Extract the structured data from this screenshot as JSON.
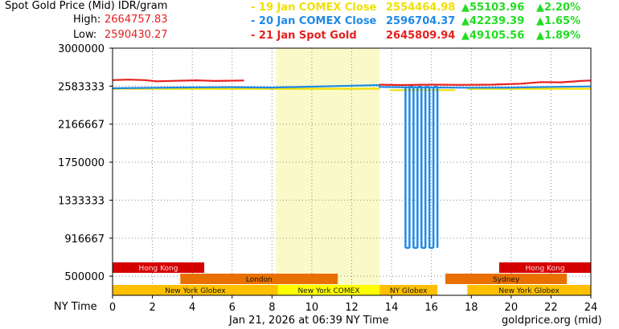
{
  "header": {
    "title": "Spot Gold Price (Mid) IDR/gram",
    "high_label": "High:",
    "high_value": "2664757.83",
    "low_label": "Low:",
    "low_value": "2590430.27"
  },
  "legend": [
    {
      "label": "- 19 Jan COMEX Close",
      "value": "2554464.98",
      "change": "▲55103.96",
      "pct": "▲2.20%",
      "color": "#f0e000"
    },
    {
      "label": "- 20 Jan COMEX Close",
      "value": "2596704.37",
      "change": "▲42239.39",
      "pct": "▲1.65%",
      "color": "#1e8ae6"
    },
    {
      "label": "- 21 Jan Spot Gold",
      "value": "2645809.94",
      "change": "▲49105.56",
      "pct": "▲1.89%",
      "color": "#e62020"
    }
  ],
  "footer": {
    "axis_title": "NY Time",
    "timestamp": "Jan 21, 2026 at 06:39 NY Time",
    "source": "goldprice.org (mid)"
  },
  "colors": {
    "up": "#22dd22",
    "highlight": "#fafac8",
    "grid": "#888888"
  },
  "chart_data": {
    "type": "line",
    "xlim": [
      0,
      24
    ],
    "ylim": [
      290000,
      3000000
    ],
    "x_ticks": [
      0,
      2,
      4,
      6,
      8,
      10,
      12,
      14,
      16,
      18,
      20,
      22,
      24
    ],
    "y_ticks": [
      500000,
      916667,
      1333333,
      1750000,
      2166667,
      2583333,
      3000000
    ],
    "y_tick_labels": [
      "500000",
      "916667",
      "1333333",
      "1750000",
      "2166667",
      "2583333",
      "3000000"
    ],
    "highlight_range": [
      8.2,
      13.4
    ],
    "series": [
      {
        "name": "19 Jan COMEX Close",
        "color": "#f0e000",
        "points": [
          [
            0,
            2554465
          ],
          [
            13.4,
            2554465
          ],
          [
            null,
            null
          ],
          [
            13.9,
            2540000
          ],
          [
            17.2,
            2540000
          ],
          [
            null,
            null
          ],
          [
            17.8,
            2554465
          ],
          [
            24,
            2554465
          ]
        ]
      },
      {
        "name": "20 Jan COMEX Close",
        "color": "#1e8ae6",
        "points": [
          [
            0,
            2560000
          ],
          [
            2,
            2565000
          ],
          [
            4,
            2570000
          ],
          [
            6,
            2572000
          ],
          [
            8,
            2568000
          ],
          [
            10,
            2578000
          ],
          [
            12,
            2588000
          ],
          [
            13.4,
            2595000
          ],
          [
            13.4,
            2575000
          ],
          [
            14.8,
            2570000
          ],
          [
            18,
            2566000
          ],
          [
            20,
            2568000
          ],
          [
            22,
            2575000
          ],
          [
            24,
            2580000
          ]
        ],
        "spikes": {
          "low": 810000,
          "x": [
            14.7,
            14.9,
            15.1,
            15.3,
            15.5,
            15.7,
            15.9,
            16.1,
            16.3
          ]
        }
      },
      {
        "name": "21 Jan Spot Gold",
        "color": "#e62020",
        "points": [
          [
            0,
            2650000
          ],
          [
            0.8,
            2655000
          ],
          [
            1.6,
            2650000
          ],
          [
            2.2,
            2637000
          ],
          [
            3.2,
            2642000
          ],
          [
            4.2,
            2647000
          ],
          [
            5.2,
            2640000
          ],
          [
            6.6,
            2645000
          ],
          [
            null,
            null
          ],
          [
            13.4,
            2600000
          ],
          [
            14.5,
            2595000
          ],
          [
            16,
            2600000
          ],
          [
            17.5,
            2597000
          ],
          [
            19,
            2600000
          ],
          [
            20.5,
            2610000
          ],
          [
            21.5,
            2628000
          ],
          [
            22.5,
            2625000
          ],
          [
            23.5,
            2640000
          ],
          [
            24,
            2645000
          ]
        ]
      }
    ],
    "sessions": [
      {
        "label": "Hong Kong",
        "start": 0,
        "end": 4.6,
        "row": 0,
        "color": "#d40000"
      },
      {
        "label": "Hong Kong",
        "start": 19.4,
        "end": 24,
        "row": 0,
        "color": "#d40000"
      },
      {
        "label": "London",
        "start": 3.4,
        "end": 11.3,
        "row": 1,
        "color": "#e87000"
      },
      {
        "label": "Sydney",
        "start": 16.7,
        "end": 22.8,
        "row": 1,
        "color": "#e87000"
      },
      {
        "label": "New York Globex",
        "start": 0,
        "end": 8.3,
        "row": 2,
        "color": "#ffc000"
      },
      {
        "label": "New York COMEX",
        "start": 8.3,
        "end": 13.4,
        "row": 2,
        "color": "#ffff00"
      },
      {
        "label": "NY Globex",
        "start": 13.4,
        "end": 16.3,
        "row": 2,
        "color": "#ffc000"
      },
      {
        "label": "New York Globex",
        "start": 17.8,
        "end": 24,
        "row": 2,
        "color": "#ffc000"
      }
    ]
  }
}
